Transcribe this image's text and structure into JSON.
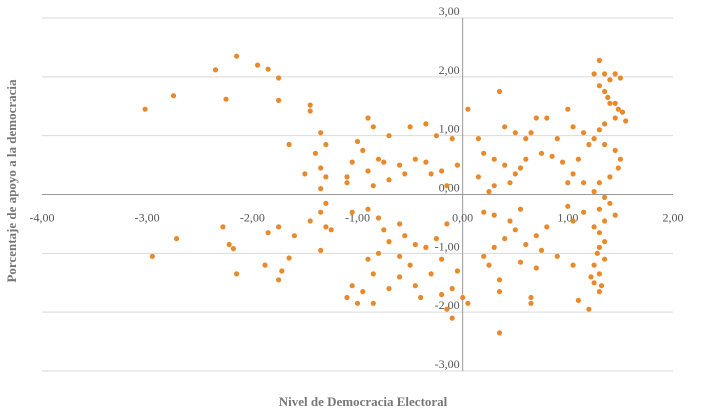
{
  "chart_data": {
    "type": "scatter",
    "title": "",
    "xlabel": "Nivel de Democracia Electoral",
    "ylabel": "Porcentaje de apoyo a la democracia",
    "xlim": [
      -4,
      2
    ],
    "ylim": [
      -3,
      3
    ],
    "x_ticks": [
      "-4,00",
      "-3,00",
      "-2,00",
      "-1,00",
      "0,00",
      "1,00",
      "2,00"
    ],
    "y_ticks": [
      "3,00",
      "2,00",
      "1,00",
      "0,00",
      "-1,00",
      "-2,00",
      "-3,00"
    ],
    "grid": "horizontal",
    "marker_color": "#E8892B",
    "axis_color": "#999999",
    "grid_color": "#d9d9d9",
    "points": [
      [
        -3.02,
        1.45
      ],
      [
        -2.75,
        1.68
      ],
      [
        -2.15,
        2.35
      ],
      [
        -2.35,
        2.12
      ],
      [
        -1.95,
        2.2
      ],
      [
        -1.85,
        2.13
      ],
      [
        -1.75,
        1.98
      ],
      [
        -2.25,
        1.62
      ],
      [
        -1.75,
        1.6
      ],
      [
        -1.45,
        1.52
      ],
      [
        -1.45,
        1.42
      ],
      [
        -1.65,
        0.85
      ],
      [
        -1.35,
        1.05
      ],
      [
        -1.3,
        0.85
      ],
      [
        -1.4,
        0.7
      ],
      [
        -1.5,
        0.35
      ],
      [
        -1.35,
        0.45
      ],
      [
        -1.3,
        0.3
      ],
      [
        -1.35,
        0.1
      ],
      [
        -1.3,
        -0.15
      ],
      [
        -1.35,
        -0.3
      ],
      [
        -1.3,
        -0.55
      ],
      [
        -1.45,
        -0.45
      ],
      [
        -1.25,
        -0.6
      ],
      [
        -1.35,
        -0.95
      ],
      [
        -1.6,
        -0.7
      ],
      [
        -1.75,
        -0.55
      ],
      [
        -1.85,
        -0.65
      ],
      [
        -2.28,
        -0.55
      ],
      [
        -2.22,
        -0.85
      ],
      [
        -2.18,
        -0.92
      ],
      [
        -2.95,
        -1.05
      ],
      [
        -2.72,
        -0.75
      ],
      [
        -2.15,
        -1.35
      ],
      [
        -1.88,
        -1.2
      ],
      [
        -1.65,
        -1.08
      ],
      [
        -1.72,
        -1.3
      ],
      [
        -1.75,
        -1.45
      ],
      [
        -1.05,
        -1.55
      ],
      [
        -1.1,
        -1.75
      ],
      [
        -0.95,
        -1.65
      ],
      [
        -0.85,
        -1.85
      ],
      [
        -1.0,
        -1.85
      ],
      [
        -0.9,
        1.3
      ],
      [
        -0.85,
        1.15
      ],
      [
        -0.7,
        1.0
      ],
      [
        -1.0,
        0.9
      ],
      [
        -0.95,
        0.75
      ],
      [
        -0.8,
        0.6
      ],
      [
        -0.75,
        0.55
      ],
      [
        -1.05,
        0.55
      ],
      [
        -0.9,
        0.4
      ],
      [
        -1.1,
        0.3
      ],
      [
        -1.1,
        0.2
      ],
      [
        -0.85,
        0.15
      ],
      [
        -0.7,
        0.25
      ],
      [
        -0.6,
        0.5
      ],
      [
        -0.55,
        0.35
      ],
      [
        -0.45,
        0.6
      ],
      [
        -0.35,
        0.55
      ],
      [
        -0.3,
        0.35
      ],
      [
        -0.2,
        0.4
      ],
      [
        -0.15,
        0.15
      ],
      [
        -0.05,
        0.5
      ],
      [
        -0.1,
        0.95
      ],
      [
        -0.25,
        1.0
      ],
      [
        -0.5,
        1.15
      ],
      [
        -0.35,
        1.2
      ],
      [
        -1.05,
        -0.3
      ],
      [
        -0.9,
        -0.25
      ],
      [
        -0.8,
        -0.4
      ],
      [
        -0.75,
        -0.6
      ],
      [
        -0.6,
        -0.5
      ],
      [
        -0.55,
        -0.7
      ],
      [
        -0.45,
        -0.85
      ],
      [
        -0.7,
        -0.8
      ],
      [
        -0.8,
        -1.0
      ],
      [
        -0.9,
        -1.1
      ],
      [
        -0.6,
        -1.05
      ],
      [
        -0.5,
        -1.2
      ],
      [
        -0.35,
        -0.9
      ],
      [
        -0.25,
        -0.75
      ],
      [
        -0.15,
        -0.5
      ],
      [
        -0.2,
        -1.1
      ],
      [
        -0.3,
        -1.35
      ],
      [
        -0.45,
        -1.55
      ],
      [
        -0.6,
        -1.4
      ],
      [
        -0.7,
        -1.6
      ],
      [
        -0.85,
        -1.35
      ],
      [
        -0.4,
        -1.75
      ],
      [
        -0.2,
        -1.7
      ],
      [
        -0.1,
        -1.6
      ],
      [
        -0.05,
        -1.3
      ],
      [
        -0.1,
        -2.1
      ],
      [
        -0.15,
        -1.95
      ],
      [
        0.0,
        -1.75
      ],
      [
        0.05,
        -1.85
      ],
      [
        0.05,
        1.45
      ],
      [
        0.15,
        0.95
      ],
      [
        0.2,
        0.7
      ],
      [
        0.35,
        1.75
      ],
      [
        0.4,
        1.15
      ],
      [
        0.5,
        1.05
      ],
      [
        0.6,
        0.95
      ],
      [
        0.3,
        0.6
      ],
      [
        0.4,
        0.5
      ],
      [
        0.5,
        0.35
      ],
      [
        0.6,
        0.6
      ],
      [
        0.65,
        1.05
      ],
      [
        0.7,
        1.3
      ],
      [
        0.8,
        1.3
      ],
      [
        0.75,
        0.7
      ],
      [
        0.85,
        0.65
      ],
      [
        0.9,
        0.95
      ],
      [
        0.95,
        0.55
      ],
      [
        0.55,
        0.45
      ],
      [
        0.45,
        0.2
      ],
      [
        0.3,
        0.15
      ],
      [
        0.25,
        0.05
      ],
      [
        0.15,
        0.3
      ],
      [
        0.2,
        -0.3
      ],
      [
        0.3,
        -0.35
      ],
      [
        0.45,
        -0.45
      ],
      [
        0.5,
        -0.6
      ],
      [
        0.4,
        -0.75
      ],
      [
        0.3,
        -0.9
      ],
      [
        0.2,
        -1.05
      ],
      [
        0.25,
        -1.2
      ],
      [
        0.35,
        -1.45
      ],
      [
        0.35,
        -1.65
      ],
      [
        0.35,
        -2.35
      ],
      [
        0.55,
        -1.15
      ],
      [
        0.6,
        -0.85
      ],
      [
        0.7,
        -0.7
      ],
      [
        0.8,
        -0.55
      ],
      [
        0.75,
        -0.95
      ],
      [
        0.7,
        -1.25
      ],
      [
        0.65,
        -1.75
      ],
      [
        0.65,
        -1.85
      ],
      [
        0.9,
        -1.05
      ],
      [
        1.0,
        -0.2
      ],
      [
        1.05,
        -0.45
      ],
      [
        1.15,
        -0.3
      ],
      [
        0.55,
        -0.25
      ],
      [
        1.0,
        1.45
      ],
      [
        1.05,
        1.15
      ],
      [
        1.15,
        1.05
      ],
      [
        1.2,
        0.85
      ],
      [
        1.1,
        0.6
      ],
      [
        1.05,
        0.35
      ],
      [
        1.0,
        0.2
      ],
      [
        1.15,
        0.2
      ],
      [
        1.1,
        -1.8
      ],
      [
        1.2,
        -1.95
      ],
      [
        1.05,
        -1.2
      ],
      [
        1.25,
        2.05
      ],
      [
        1.3,
        2.28
      ],
      [
        1.35,
        2.05
      ],
      [
        1.4,
        1.95
      ],
      [
        1.45,
        2.05
      ],
      [
        1.5,
        1.98
      ],
      [
        1.3,
        1.85
      ],
      [
        1.35,
        1.75
      ],
      [
        1.38,
        1.65
      ],
      [
        1.4,
        1.55
      ],
      [
        1.45,
        1.55
      ],
      [
        1.48,
        1.45
      ],
      [
        1.52,
        1.4
      ],
      [
        1.55,
        1.25
      ],
      [
        1.45,
        1.3
      ],
      [
        1.35,
        1.2
      ],
      [
        1.3,
        1.1
      ],
      [
        1.25,
        0.95
      ],
      [
        1.35,
        0.85
      ],
      [
        1.45,
        0.75
      ],
      [
        1.5,
        0.6
      ],
      [
        1.48,
        0.45
      ],
      [
        1.4,
        0.3
      ],
      [
        1.3,
        0.2
      ],
      [
        1.25,
        0.05
      ],
      [
        1.35,
        -0.05
      ],
      [
        1.4,
        -0.15
      ],
      [
        1.3,
        -0.25
      ],
      [
        1.45,
        -0.35
      ],
      [
        1.35,
        -0.45
      ],
      [
        1.25,
        -0.55
      ],
      [
        1.3,
        -0.65
      ],
      [
        1.35,
        -0.8
      ],
      [
        1.3,
        -0.9
      ],
      [
        1.28,
        -1.0
      ],
      [
        1.35,
        -1.1
      ],
      [
        1.25,
        -1.2
      ],
      [
        1.3,
        -1.35
      ],
      [
        1.25,
        -1.5
      ],
      [
        1.3,
        -1.65
      ],
      [
        1.22,
        -1.4
      ],
      [
        1.32,
        -1.55
      ]
    ]
  }
}
